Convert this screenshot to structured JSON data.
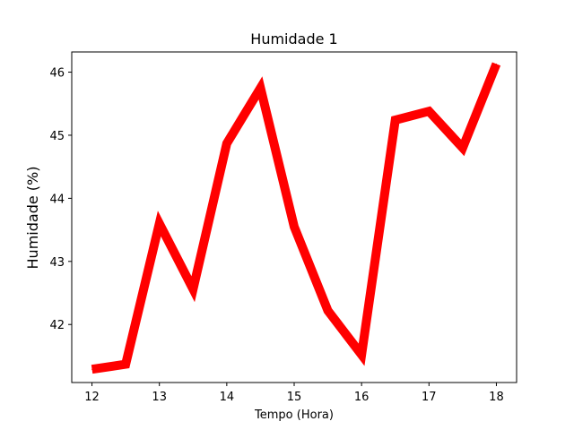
{
  "chart_data": {
    "type": "line",
    "title": "Humidade 1",
    "xlabel": "Tempo (Hora)",
    "ylabel": "Humidade (%)",
    "xlim": [
      11.7,
      18.3
    ],
    "ylim": [
      41.08,
      46.32
    ],
    "xticks": [
      12,
      13,
      14,
      15,
      16,
      17,
      18
    ],
    "yticks": [
      42,
      43,
      44,
      45,
      46
    ],
    "grid": false,
    "series": [
      {
        "color": "#ff0000",
        "x": [
          12,
          12.5,
          13,
          13.5,
          14,
          14.5,
          15,
          15.5,
          16,
          16.5,
          17,
          17.5,
          18
        ],
        "y": [
          41.29,
          41.37,
          43.6,
          42.56,
          44.87,
          45.75,
          43.55,
          42.22,
          41.52,
          45.24,
          45.38,
          44.8,
          46.13
        ]
      }
    ]
  }
}
